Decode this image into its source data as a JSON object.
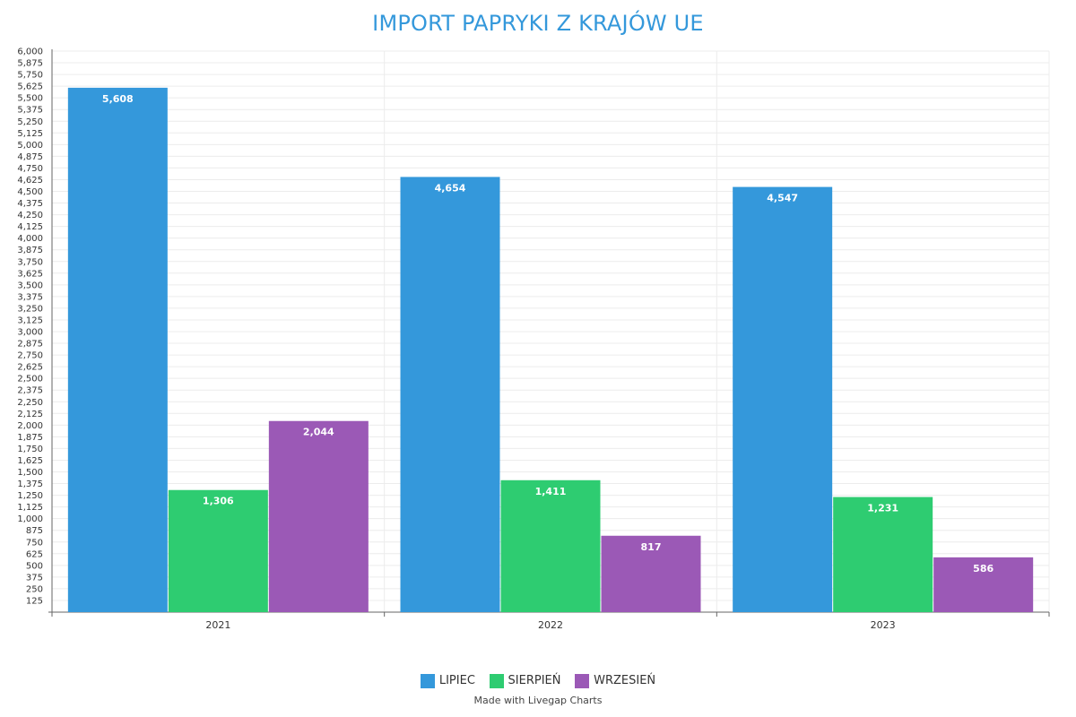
{
  "title": "IMPORT PAPRYKI Z KRAJÓW UE",
  "credit": "Made with Livegap Charts",
  "colors": {
    "title": "#3498db",
    "LIPIEC": "#3498db",
    "SIERPIEŃ": "#2ecc71",
    "WRZESIEŃ": "#9b59b6"
  },
  "chart_data": {
    "type": "bar",
    "title": "IMPORT PAPRYKI Z KRAJÓW UE",
    "categories": [
      "2021",
      "2022",
      "2023"
    ],
    "series": [
      {
        "name": "LIPIEC",
        "values": [
          5608,
          4654,
          4547
        ],
        "color": "#3498db"
      },
      {
        "name": "SIERPIEŃ",
        "values": [
          1306,
          1411,
          1231
        ],
        "color": "#2ecc71"
      },
      {
        "name": "WRZESIEŃ",
        "values": [
          2044,
          817,
          586
        ],
        "color": "#9b59b6"
      }
    ],
    "value_labels": [
      [
        "5,608",
        "4,654",
        "4,547"
      ],
      [
        "1,306",
        "1,411",
        "1,231"
      ],
      [
        "2,044",
        "817",
        "586"
      ]
    ],
    "ylim": [
      0,
      6000
    ],
    "y_tick_step": 125,
    "y_tick_start": 125,
    "xlabel": "",
    "ylabel": "",
    "grid": true,
    "legend_position": "bottom"
  }
}
